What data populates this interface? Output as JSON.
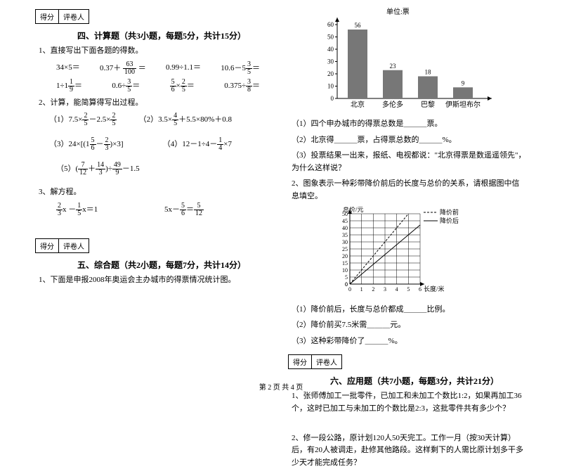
{
  "scorebox": {
    "score": "得分",
    "grader": "评卷人"
  },
  "section4": {
    "title": "四、计算题（共3小题，每题5分，共计15分）",
    "q1": "1、直接写出下面各题的得数。",
    "q1_row1": [
      "34×5＝",
      "0.37＋ <f>63|100</f> ＝",
      "0.99÷1.1＝",
      "10.6－5<f>3|5</f>＝"
    ],
    "q1_row2": [
      "1÷1<f>1|9</f>＝",
      "0.6÷<f>3|5</f>＝",
      "<f>5|6</f>×<f>2|5</f>＝",
      "0.375÷<f>3|8</f>＝"
    ],
    "q2": "2、计算，能简算得写出过程。",
    "q2_items": [
      "（1）7.5×<f>2|5</f>－2.5×<f>2|5</f>",
      "（2）3.5×<f>4|5</f>＋5.5×80%＋0.8",
      "（3）24×[(1<f>5|6</f>－<f>2|3</f>)×3]",
      "（4）12－1÷4－<f>1|4</f>×7",
      "（5）(<f>7|12</f>＋<f>14|3</f>)÷<f>49|9</f>－1.5"
    ],
    "q3": "3、解方程。",
    "q3_items": [
      "<f>2|3</f>x －<f>1|5</f>x＝1",
      "5x－<f>5|6</f>＝<f>5|12</f>"
    ]
  },
  "section5": {
    "title": "五、综合题（共2小题，每题7分，共计14分）",
    "q1": "1、下面是申报2008年奥运会主办城市的得票情况统计图。",
    "barChart": {
      "unit": "单位:票",
      "yMax": 60,
      "yStep": 10,
      "bars": [
        {
          "label": "北京",
          "value": 56
        },
        {
          "label": "多伦多",
          "value": 23
        },
        {
          "label": "巴黎",
          "value": 18
        },
        {
          "label": "伊斯坦布尔",
          "value": 9
        }
      ],
      "barColor": "#777777",
      "axisColor": "#000000"
    },
    "q1_sub": [
      "（1）四个申办城市的得票总数是＿＿＿票。",
      "（2）北京得＿＿＿票，占得票总数的＿＿＿%。",
      "（3）投票结果一出来，报纸、电视都说：\"北京得票是数遥遥领先\"，为什么这样说？"
    ],
    "q2": "2、图象表示一种彩带降价前后的长度与总价的关系，请根据图中信息填空。",
    "lineChart": {
      "xLabel": "长度/米",
      "yLabel": "总价/元",
      "legend": [
        "降价前",
        "降价后"
      ],
      "xMax": 6,
      "yMax": 50,
      "xStep": 1,
      "yStep": 5,
      "line1": [
        [
          0,
          0
        ],
        [
          5,
          50
        ]
      ],
      "line2": [
        [
          0,
          0
        ],
        [
          6,
          42
        ]
      ],
      "line1_style": "dashed",
      "line2_style": "solid",
      "gridColor": "#000000",
      "bgColor": "#f0f0f0"
    },
    "q2_sub": [
      "（1）降价前后，长度与总价都成＿＿＿比例。",
      "（2）降价前买7.5米需＿＿＿元。",
      "（3）这种彩带降价了＿＿＿%。"
    ]
  },
  "section6": {
    "title": "六、应用题（共7小题，每题3分，共计21分）",
    "q1": "1、张师傅加工一批零件，已加工和未加工个数比1:2，如果再加工36个，这时已加工与未加工的个数比是2:3，这批零件共有多少个？",
    "q2": "2、修一段公路，原计划120人50天完工。工作一月（按30天计算）后，有20人被调走，赴修其他路段。这样剩下的人需比原计划多干多少天才能完成任务？"
  },
  "footer": "第 2 页 共 4 页"
}
